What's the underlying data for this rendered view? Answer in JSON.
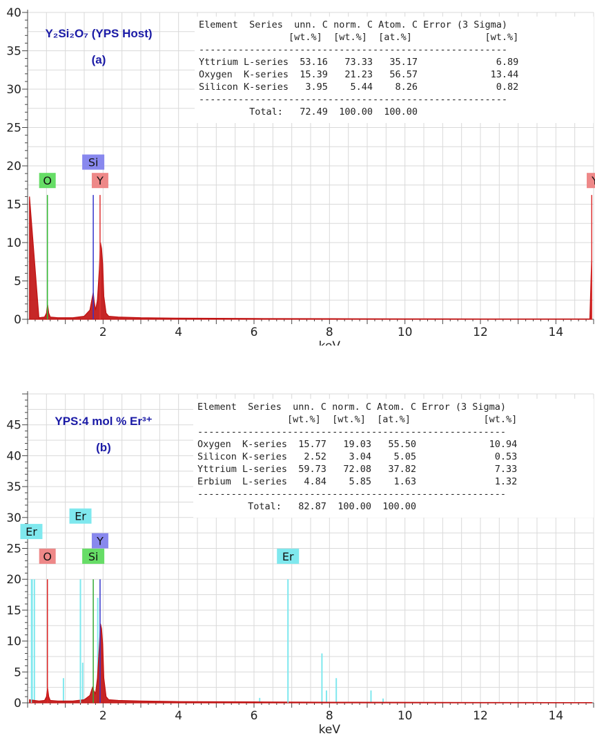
{
  "colors": {
    "spectrum": "#c01010",
    "grid": "#d9d9d9",
    "O_a": "#66dd66",
    "Si_a": "#8888ee",
    "Y_a": "#ee8888",
    "Er_b": "#7fe8ee",
    "O_b": "#ee8888",
    "Si_b": "#66dd66",
    "Y_b": "#8888ee",
    "title": "#1a1aa6"
  },
  "chart_data": [
    {
      "type": "line",
      "title_main": "Y₂Si₂O₇ (YPS Host)",
      "title_sub": "(a)",
      "xlabel": "keV",
      "ylabel": "",
      "xlim": [
        0,
        15
      ],
      "ylim": [
        0,
        40
      ],
      "xticks": [
        "2",
        "4",
        "6",
        "8",
        "10",
        "12",
        "14"
      ],
      "yticks": [
        "0",
        "5",
        "10",
        "15",
        "20",
        "25",
        "30",
        "35",
        "40"
      ],
      "grid": true,
      "spectrum": {
        "x": [
          0.05,
          0.3,
          0.45,
          0.5,
          0.53,
          0.56,
          0.6,
          0.8,
          1.2,
          1.5,
          1.65,
          1.72,
          1.74,
          1.76,
          1.8,
          1.85,
          1.9,
          1.93,
          1.96,
          1.99,
          2.02,
          2.08,
          2.15,
          2.4,
          3,
          4,
          6,
          8,
          10,
          12,
          14,
          14.9,
          14.95
        ],
        "y": [
          16,
          0.2,
          0.3,
          0.8,
          1.9,
          0.8,
          0.3,
          0.2,
          0.2,
          0.4,
          1.2,
          3.0,
          3.5,
          2.5,
          1.2,
          2.5,
          6.5,
          10.0,
          9.2,
          7.2,
          3.0,
          0.8,
          0.4,
          0.3,
          0.2,
          0.15,
          0.1,
          0.08,
          0.06,
          0.05,
          0.05,
          0.05,
          8.3
        ]
      },
      "peaks": [
        {
          "label": "O",
          "x": 0.525,
          "line_top": 16.2
        },
        {
          "label": "Si",
          "x": 1.74,
          "line_top": 16.2
        },
        {
          "label": "Y",
          "x": 1.92,
          "line_top": 16.2
        },
        {
          "label": "Y",
          "x": 14.95,
          "line_top": 16.2
        }
      ],
      "table": {
        "header1": "Element  Series  unn. C norm. C Atom. C Error (3 Sigma)",
        "header2": "                [wt.%]  [wt.%]  [at.%]             [wt.%]",
        "rule": "-------------------------------------------------------",
        "rows": [
          "Yttrium L-series  53.16   73.33   35.17              6.89",
          "Oxygen  K-series  15.39   21.23   56.57             13.44",
          "Silicon K-series   3.95    5.44    8.26              0.82"
        ],
        "total": "         Total:   72.49  100.00  100.00"
      }
    },
    {
      "type": "line",
      "title_main": "YPS:4 mol % Er³⁺",
      "title_sub": "(b)",
      "xlabel": "keV",
      "ylabel": "",
      "xlim": [
        0,
        15
      ],
      "ylim": [
        0,
        50
      ],
      "xticks": [
        "2",
        "4",
        "6",
        "8",
        "10",
        "12",
        "14"
      ],
      "yticks": [
        "0",
        "5",
        "10",
        "15",
        "20",
        "25",
        "30",
        "35",
        "40",
        "45"
      ],
      "grid": true,
      "spectrum": {
        "x": [
          0.05,
          0.3,
          0.45,
          0.5,
          0.53,
          0.56,
          0.6,
          0.8,
          1.2,
          1.5,
          1.65,
          1.72,
          1.75,
          1.8,
          1.85,
          1.9,
          1.93,
          1.96,
          1.99,
          2.02,
          2.08,
          2.15,
          2.4,
          3,
          4,
          6,
          8,
          10,
          12,
          14,
          14.95
        ],
        "y": [
          0.5,
          0.3,
          0.4,
          1.0,
          2.4,
          1.0,
          0.4,
          0.3,
          0.3,
          0.5,
          1.2,
          2.5,
          2.0,
          1.5,
          4.0,
          9.0,
          12.8,
          12.0,
          9.5,
          4.0,
          1.0,
          0.5,
          0.4,
          0.3,
          0.2,
          0.15,
          0.1,
          0.08,
          0.06,
          0.05,
          0.05
        ]
      },
      "er_lines": [
        {
          "x": 0.12,
          "top": 20.0
        },
        {
          "x": 0.18,
          "top": 20.0
        },
        {
          "x": 0.95,
          "top": 4.0
        },
        {
          "x": 1.4,
          "top": 20.0
        },
        {
          "x": 1.46,
          "top": 6.5
        },
        {
          "x": 1.86,
          "top": 17.0
        },
        {
          "x": 6.15,
          "top": 0.8
        },
        {
          "x": 6.9,
          "top": 20.0
        },
        {
          "x": 7.8,
          "top": 8.0
        },
        {
          "x": 7.92,
          "top": 2.0
        },
        {
          "x": 8.18,
          "top": 4.0
        },
        {
          "x": 9.1,
          "top": 2.0
        },
        {
          "x": 9.42,
          "top": 0.7
        }
      ],
      "peaks": [
        {
          "label": "Er",
          "x": 0.1,
          "line_top": 20.0,
          "box_level": 26.5,
          "cls": "Er_b"
        },
        {
          "label": "O",
          "x": 0.525,
          "line_top": 20.0,
          "box_level": 22.5,
          "cls": "O_b"
        },
        {
          "label": "Er",
          "x": 1.4,
          "line_top": 20.0,
          "box_level": 29.0,
          "cls": "Er_b"
        },
        {
          "label": "Y",
          "x": 1.92,
          "line_top": 20.0,
          "box_level": 25.0,
          "cls": "Y_b"
        },
        {
          "label": "Si",
          "x": 1.74,
          "line_top": 20.0,
          "box_level": 22.5,
          "cls": "Si_b"
        },
        {
          "label": "Er",
          "x": 6.9,
          "line_top": 20.0,
          "box_level": 22.5,
          "cls": "Er_b"
        }
      ],
      "table": {
        "header1": "Element  Series  unn. C norm. C Atom. C Error (3 Sigma)",
        "header2": "                [wt.%]  [wt.%]  [at.%]             [wt.%]",
        "rule": "-------------------------------------------------------",
        "rows": [
          "Oxygen  K-series  15.77   19.03   55.50             10.94",
          "Silicon K-series   2.52    3.04    5.05              0.53",
          "Yttrium L-series  59.73   72.08   37.82              7.33",
          "Erbium  L-series   4.84    5.85    1.63              1.32"
        ],
        "total": "         Total:   82.87  100.00  100.00"
      }
    }
  ]
}
